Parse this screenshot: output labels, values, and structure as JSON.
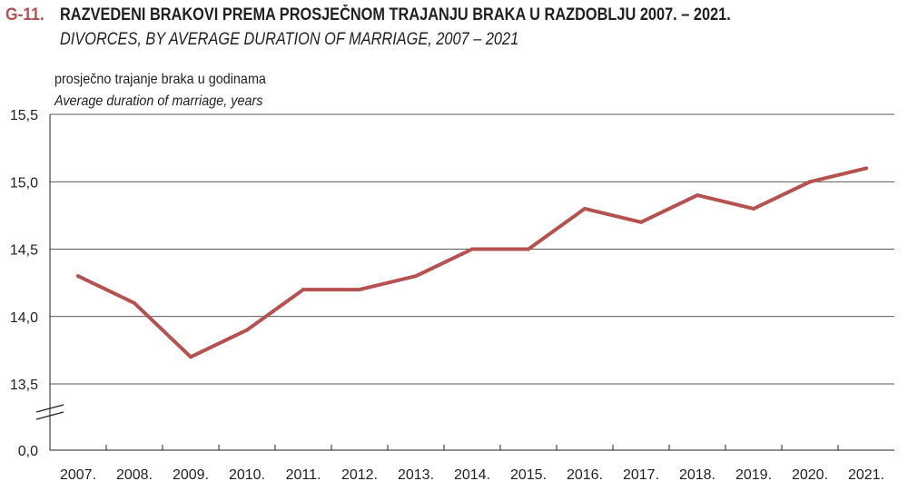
{
  "figure": {
    "number": "G-11.",
    "title_hr": "RAZVEDENI BRAKOVI PREMA PROSJEČNOM TRAJANJU BRAKA U RAZDOBLJU 2007. – 2021.",
    "title_en": "DIVORCES, BY AVERAGE DURATION OF MARRIAGE, 2007 – 2021"
  },
  "colors": {
    "line": "#b5524f",
    "grid": "#231f20",
    "axis": "#231f20"
  },
  "chart_data": {
    "type": "line",
    "ylabel_hr": "prosječno trajanje braka u godinama",
    "ylabel_en": "Average duration of marriage, years",
    "categories": [
      "2007.",
      "2008.",
      "2009.",
      "2010.",
      "2011.",
      "2012.",
      "2013.",
      "2014.",
      "2015.",
      "2016.",
      "2017.",
      "2018.",
      "2019.",
      "2020.",
      "2021."
    ],
    "values": [
      14.3,
      14.1,
      13.7,
      13.9,
      14.2,
      14.2,
      14.3,
      14.5,
      14.5,
      14.8,
      14.7,
      14.9,
      14.8,
      15.0,
      15.1
    ],
    "ylim": [
      13.5,
      15.5
    ],
    "yticks": [
      13.5,
      14.0,
      14.5,
      15.0,
      15.5
    ],
    "ytick_labels": [
      "13,5",
      "14,0",
      "14,5",
      "15,0",
      "15,5"
    ],
    "axis_break": true,
    "baseline_label": "0,0",
    "grid": true
  }
}
